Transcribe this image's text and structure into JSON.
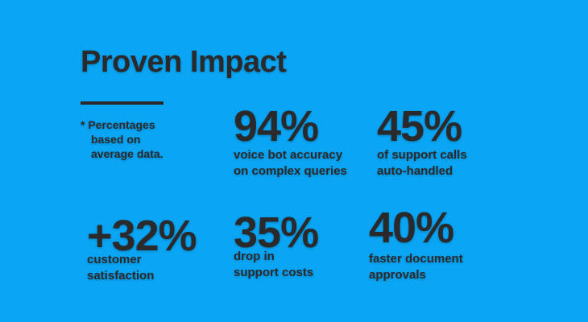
{
  "header": {
    "title": "Proven Impact"
  },
  "note": [
    "* Percentages",
    "based on",
    "average data."
  ],
  "stats": [
    {
      "value": "94%",
      "label": [
        "voice bot accuracy",
        "on complex queries"
      ]
    },
    {
      "value": "45%",
      "label": [
        "of support calls",
        "auto-handled"
      ]
    },
    {
      "value": "+32%",
      "label": [
        "customer",
        "satisfaction"
      ]
    },
    {
      "value": "35%",
      "label": [
        "drop in",
        "support costs"
      ]
    },
    {
      "value": "40%",
      "label": [
        "faster document",
        "approvals"
      ]
    }
  ]
}
